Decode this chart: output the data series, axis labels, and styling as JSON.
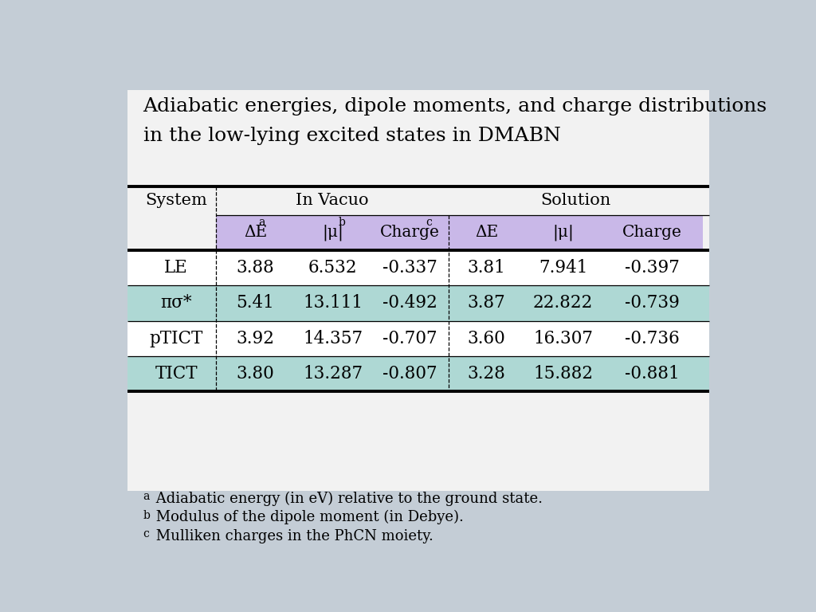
{
  "title_line1": "Adiabatic energies, dipole moments, and charge distributions",
  "title_line2": "in the low-lying excited states in DMABN",
  "background_color": "#c4cdd6",
  "table_bg": "#f2f2f2",
  "header1_text": "In Vacuo",
  "header2_text": "Solution",
  "row_labels": [
    "LE",
    "πσ*",
    "pTICT",
    "TICT"
  ],
  "data": [
    [
      "3.88",
      "6.532",
      "-0.337",
      "3.81",
      "7.941",
      "-0.397"
    ],
    [
      "5.41",
      "13.111",
      "-0.492",
      "3.87",
      "22.822",
      "-0.739"
    ],
    [
      "3.92",
      "14.357",
      "-0.707",
      "3.60",
      "16.307",
      "-0.736"
    ],
    [
      "3.80",
      "13.287",
      "-0.807",
      "3.28",
      "15.882",
      "-0.881"
    ]
  ],
  "row_colors": [
    "#ffffff",
    "#aed8d4",
    "#ffffff",
    "#aed8d4"
  ],
  "header_row_color": "#c9b8e8",
  "fn_data": [
    [
      "a",
      " Adiabatic energy (in eV) relative to the ground state."
    ],
    [
      "b",
      " Modulus of the dipole moment (in Debye)."
    ],
    [
      "c",
      " Mulliken charges in the PhCN moiety."
    ]
  ]
}
